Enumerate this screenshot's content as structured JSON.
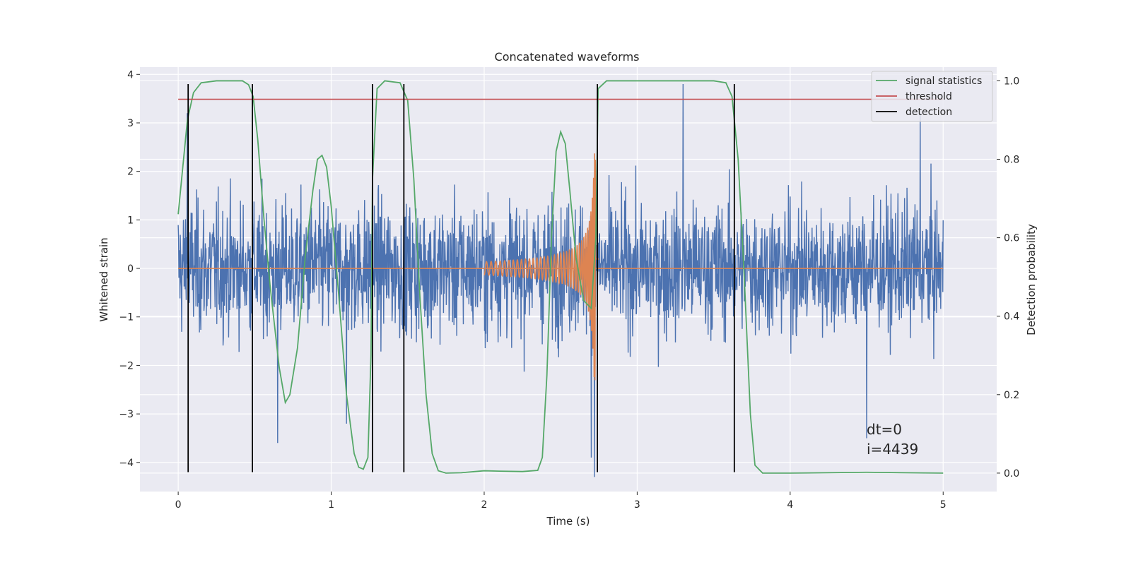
{
  "chart_data": {
    "type": "line",
    "title": "Concatenated waveforms",
    "xlabel": "Time (s)",
    "ylabel": "Whitened strain",
    "y2label": "Detection probability",
    "xlim": [
      -0.25,
      5.35
    ],
    "ylim": [
      -4.6,
      4.15
    ],
    "y2lim": [
      -0.047,
      1.035
    ],
    "xticks": [
      0,
      1,
      2,
      3,
      4,
      5
    ],
    "yticks": [
      -4,
      -3,
      -2,
      -1,
      0,
      1,
      2,
      3,
      4
    ],
    "y2ticks": [
      0.0,
      0.2,
      0.4,
      0.6,
      0.8,
      1.0
    ],
    "grid": true,
    "legend_position": "top-right",
    "colors": {
      "background": "#eaeaf2",
      "grid": "#ffffff",
      "noise": "#4c72b0",
      "waveform": "#dd8452",
      "statistics": "#55a868",
      "threshold": "#c44e52",
      "detection": "#000000"
    },
    "series": [
      {
        "name": "",
        "role": "whitened strain (noise), approx. Gaussian with sigma ~0.9, t = 0 to 5 s",
        "color": "#4c72b0",
        "t_range": [
          0,
          5
        ],
        "notable_peaks": [
          [
            0.06,
            3.2
          ],
          [
            0.65,
            -3.6
          ],
          [
            1.1,
            -3.2
          ],
          [
            2.7,
            -3.9
          ],
          [
            2.72,
            -4.3
          ],
          [
            3.3,
            3.8
          ],
          [
            4.5,
            -3.5
          ],
          [
            4.85,
            3.2
          ]
        ]
      },
      {
        "name": "",
        "role": "injected chirp waveform",
        "color": "#dd8452",
        "t_start": 2.0,
        "t_merger": 2.72,
        "peak_amplitude": 2.4
      },
      {
        "name": "signal statistics",
        "axis": "right",
        "color": "#55a868",
        "points": [
          [
            0.0,
            0.66
          ],
          [
            0.03,
            0.78
          ],
          [
            0.06,
            0.9
          ],
          [
            0.1,
            0.97
          ],
          [
            0.15,
            0.995
          ],
          [
            0.25,
            1.0
          ],
          [
            0.42,
            1.0
          ],
          [
            0.46,
            0.99
          ],
          [
            0.49,
            0.96
          ],
          [
            0.52,
            0.85
          ],
          [
            0.56,
            0.65
          ],
          [
            0.6,
            0.48
          ],
          [
            0.66,
            0.27
          ],
          [
            0.7,
            0.18
          ],
          [
            0.73,
            0.2
          ],
          [
            0.78,
            0.32
          ],
          [
            0.83,
            0.55
          ],
          [
            0.88,
            0.72
          ],
          [
            0.91,
            0.8
          ],
          [
            0.94,
            0.81
          ],
          [
            0.97,
            0.78
          ],
          [
            1.0,
            0.68
          ],
          [
            1.05,
            0.45
          ],
          [
            1.1,
            0.2
          ],
          [
            1.15,
            0.05
          ],
          [
            1.18,
            0.015
          ],
          [
            1.21,
            0.01
          ],
          [
            1.24,
            0.04
          ],
          [
            1.26,
            0.3
          ],
          [
            1.27,
            0.75
          ],
          [
            1.3,
            0.98
          ],
          [
            1.35,
            1.0
          ],
          [
            1.45,
            0.995
          ],
          [
            1.5,
            0.95
          ],
          [
            1.54,
            0.75
          ],
          [
            1.58,
            0.45
          ],
          [
            1.62,
            0.2
          ],
          [
            1.66,
            0.05
          ],
          [
            1.7,
            0.006
          ],
          [
            1.75,
            0.0
          ],
          [
            1.85,
            0.001
          ],
          [
            2.0,
            0.006
          ],
          [
            2.1,
            0.005
          ],
          [
            2.25,
            0.004
          ],
          [
            2.35,
            0.007
          ],
          [
            2.38,
            0.04
          ],
          [
            2.41,
            0.25
          ],
          [
            2.44,
            0.6
          ],
          [
            2.47,
            0.82
          ],
          [
            2.5,
            0.87
          ],
          [
            2.53,
            0.84
          ],
          [
            2.56,
            0.72
          ],
          [
            2.6,
            0.55
          ],
          [
            2.65,
            0.44
          ],
          [
            2.7,
            0.42
          ],
          [
            2.73,
            0.6
          ],
          [
            2.745,
            0.98
          ],
          [
            2.8,
            1.0
          ],
          [
            3.0,
            1.0
          ],
          [
            3.5,
            1.0
          ],
          [
            3.58,
            0.995
          ],
          [
            3.62,
            0.96
          ],
          [
            3.66,
            0.8
          ],
          [
            3.7,
            0.5
          ],
          [
            3.74,
            0.15
          ],
          [
            3.77,
            0.02
          ],
          [
            3.82,
            0.0
          ],
          [
            4.0,
            0.0
          ],
          [
            4.5,
            0.002
          ],
          [
            5.0,
            0.0
          ]
        ]
      },
      {
        "name": "threshold",
        "axis": "right",
        "color": "#c44e52",
        "value": 0.953,
        "t_range": [
          0,
          5
        ]
      },
      {
        "name": "detection",
        "color": "#000000",
        "times": [
          0.065,
          0.485,
          1.27,
          1.475,
          2.74,
          3.635
        ],
        "y_range": [
          -4.2,
          3.8
        ]
      }
    ],
    "annotations": [
      "dt=0",
      "i=4439"
    ]
  }
}
